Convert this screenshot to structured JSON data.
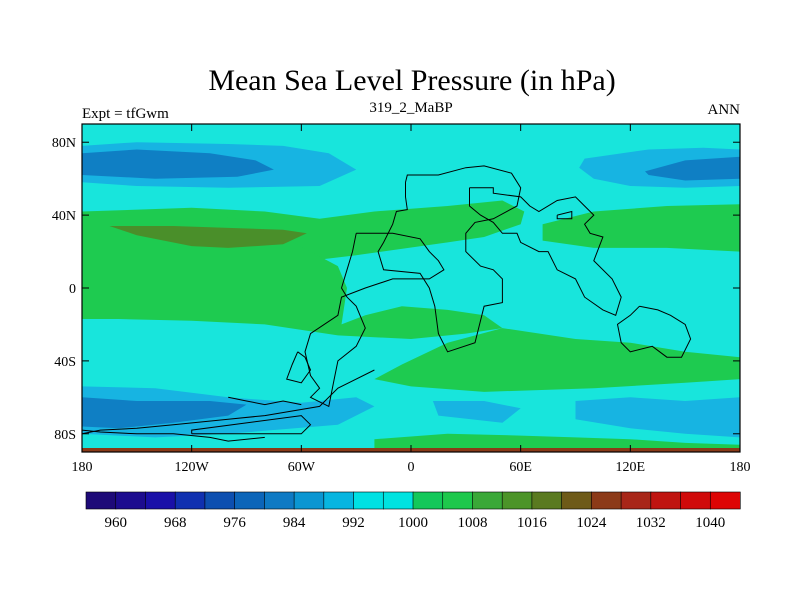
{
  "chart_data": {
    "type": "heatmap",
    "title": "Mean Sea Level Pressure (in hPa)",
    "subtitle_left": "Expt = tfGwm",
    "subtitle_center": "319_2_MaBP",
    "subtitle_right": "ANN",
    "xlim": [
      -180,
      180
    ],
    "ylim": [
      -90,
      90
    ],
    "x_ticks": [
      {
        "value": -180,
        "label": "180"
      },
      {
        "value": -120,
        "label": "120W"
      },
      {
        "value": -60,
        "label": "60W"
      },
      {
        "value": 0,
        "label": "0"
      },
      {
        "value": 60,
        "label": "60E"
      },
      {
        "value": 120,
        "label": "120E"
      },
      {
        "value": 180,
        "label": "180"
      }
    ],
    "y_ticks": [
      {
        "value": 80,
        "label": "80N"
      },
      {
        "value": 40,
        "label": "40N"
      },
      {
        "value": 0,
        "label": "0"
      },
      {
        "value": -40,
        "label": "40S"
      },
      {
        "value": -80,
        "label": "80S"
      }
    ],
    "colorbar": {
      "levels": [
        960,
        964,
        968,
        972,
        976,
        980,
        984,
        988,
        992,
        996,
        1000,
        1004,
        1008,
        1012,
        1016,
        1020,
        1024,
        1028,
        1032,
        1036,
        1040
      ],
      "labels": [
        "960",
        "968",
        "976",
        "984",
        "992",
        "1000",
        "1008",
        "1016",
        "1024",
        "1032",
        "1040"
      ],
      "colors": [
        "#1e0a78",
        "#1d0c8f",
        "#1a10a8",
        "#1030b0",
        "#0d4fb0",
        "#0c65b9",
        "#0e7ac4",
        "#0b96d2",
        "#07b5e0",
        "#00e1e3",
        "#00e3e0",
        "#13c85a",
        "#1ec84c",
        "#3aa838",
        "#4c9428",
        "#5a7a20",
        "#6e5a18",
        "#8c3a18",
        "#a82618",
        "#c01410",
        "#d00a0a",
        "#dd0505"
      ]
    },
    "regions": [
      {
        "level": "1000-1004",
        "color": "#18e5dc",
        "polygon": [
          [
            -180,
            90
          ],
          [
            180,
            90
          ],
          [
            180,
            -90
          ],
          [
            -180,
            -90
          ]
        ]
      },
      {
        "level": "992-996",
        "color": "#17b4e2",
        "polygon": [
          [
            -180,
            78
          ],
          [
            -150,
            80
          ],
          [
            -100,
            79
          ],
          [
            -70,
            78
          ],
          [
            -45,
            74
          ],
          [
            -30,
            65
          ],
          [
            -50,
            56
          ],
          [
            -100,
            55
          ],
          [
            -150,
            56
          ],
          [
            -180,
            58
          ]
        ]
      },
      {
        "level": "984-988",
        "color": "#0f7fc4",
        "polygon": [
          [
            -180,
            74
          ],
          [
            -150,
            76
          ],
          [
            -110,
            74
          ],
          [
            -85,
            70
          ],
          [
            -75,
            65
          ],
          [
            -95,
            61
          ],
          [
            -140,
            60
          ],
          [
            -180,
            62
          ]
        ]
      },
      {
        "level": "992-996",
        "color": "#17b4e2",
        "polygon": [
          [
            95,
            71
          ],
          [
            130,
            76
          ],
          [
            160,
            77
          ],
          [
            180,
            76
          ],
          [
            180,
            56
          ],
          [
            150,
            55
          ],
          [
            120,
            56
          ],
          [
            100,
            60
          ],
          [
            92,
            66
          ]
        ]
      },
      {
        "level": "984-988",
        "color": "#0f7fc4",
        "polygon": [
          [
            128,
            64
          ],
          [
            150,
            70
          ],
          [
            180,
            72
          ],
          [
            180,
            60
          ],
          [
            150,
            59
          ],
          [
            130,
            62
          ]
        ]
      },
      {
        "level": "1004-1008",
        "color": "#1ecb50",
        "polygon": [
          [
            -180,
            42
          ],
          [
            -120,
            44
          ],
          [
            -80,
            42
          ],
          [
            -50,
            38
          ],
          [
            -20,
            42
          ],
          [
            20,
            45
          ],
          [
            50,
            48
          ],
          [
            62,
            42
          ],
          [
            60,
            35
          ],
          [
            40,
            28
          ],
          [
            20,
            25
          ],
          [
            -30,
            18
          ],
          [
            -80,
            12
          ],
          [
            -100,
            3
          ],
          [
            -120,
            -1
          ],
          [
            -150,
            -1
          ],
          [
            -180,
            3
          ]
        ]
      },
      {
        "level": "1008-1012",
        "color": "#1ecb50",
        "polygon": [
          [
            -180,
            42
          ],
          [
            -110,
            40
          ],
          [
            -80,
            36
          ],
          [
            -70,
            28
          ],
          [
            -55,
            20
          ],
          [
            -40,
            12
          ],
          [
            -35,
            0
          ],
          [
            -38,
            -20
          ],
          [
            -25,
            -15
          ],
          [
            -5,
            -10
          ],
          [
            20,
            -12
          ],
          [
            40,
            -15
          ],
          [
            50,
            -22
          ],
          [
            30,
            -25
          ],
          [
            0,
            -28
          ],
          [
            -40,
            -26
          ],
          [
            -80,
            -20
          ],
          [
            -120,
            -18
          ],
          [
            -160,
            -17
          ],
          [
            -180,
            -17
          ]
        ]
      },
      {
        "level": "1004-1008",
        "color": "#1ecb50",
        "polygon": [
          [
            -5,
            -42
          ],
          [
            20,
            -30
          ],
          [
            50,
            -22
          ],
          [
            90,
            -28
          ],
          [
            120,
            -30
          ],
          [
            150,
            -35
          ],
          [
            180,
            -38
          ],
          [
            180,
            -50
          ],
          [
            150,
            -52
          ],
          [
            100,
            -55
          ],
          [
            40,
            -57
          ],
          [
            0,
            -54
          ],
          [
            -20,
            -50
          ]
        ]
      },
      {
        "level": "1004-1008",
        "color": "#1ecb50",
        "polygon": [
          [
            72,
            35
          ],
          [
            100,
            42
          ],
          [
            140,
            45
          ],
          [
            180,
            46
          ],
          [
            180,
            20
          ],
          [
            140,
            22
          ],
          [
            100,
            22
          ],
          [
            72,
            26
          ]
        ]
      },
      {
        "level": "1012-1016",
        "color": "#4a8f2a",
        "polygon": [
          [
            -165,
            34
          ],
          [
            -130,
            34
          ],
          [
            -100,
            33
          ],
          [
            -70,
            32
          ],
          [
            -57,
            30
          ],
          [
            -70,
            24
          ],
          [
            -100,
            22
          ],
          [
            -120,
            23
          ],
          [
            -150,
            29
          ]
        ]
      },
      {
        "level": "992-996",
        "color": "#17b4e2",
        "polygon": [
          [
            -180,
            -54
          ],
          [
            -140,
            -55
          ],
          [
            -100,
            -60
          ],
          [
            -60,
            -63
          ],
          [
            -30,
            -60
          ],
          [
            -20,
            -65
          ],
          [
            -40,
            -75
          ],
          [
            -100,
            -80
          ],
          [
            -140,
            -82
          ],
          [
            -180,
            -80
          ]
        ]
      },
      {
        "level": "984-988",
        "color": "#0f7fc4",
        "polygon": [
          [
            -180,
            -60
          ],
          [
            -150,
            -62
          ],
          [
            -110,
            -62
          ],
          [
            -90,
            -64
          ],
          [
            -100,
            -70
          ],
          [
            -130,
            -74
          ],
          [
            -160,
            -77
          ],
          [
            -180,
            -76
          ]
        ]
      },
      {
        "level": "992-996",
        "color": "#17b4e2",
        "polygon": [
          [
            90,
            -62
          ],
          [
            120,
            -60
          ],
          [
            150,
            -62
          ],
          [
            180,
            -60
          ],
          [
            180,
            -82
          ],
          [
            150,
            -80
          ],
          [
            120,
            -77
          ],
          [
            90,
            -72
          ]
        ]
      },
      {
        "level": "992-996",
        "color": "#17b4e2",
        "polygon": [
          [
            12,
            -62
          ],
          [
            40,
            -62
          ],
          [
            60,
            -66
          ],
          [
            50,
            -74
          ],
          [
            15,
            -70
          ]
        ]
      },
      {
        "level": "1004-1008",
        "color": "#1ecb50",
        "polygon": [
          [
            -20,
            -83
          ],
          [
            20,
            -80
          ],
          [
            60,
            -81
          ],
          [
            90,
            -82
          ],
          [
            120,
            -83
          ],
          [
            150,
            -85
          ],
          [
            180,
            -86
          ],
          [
            180,
            -90
          ],
          [
            -20,
            -90
          ]
        ]
      }
    ],
    "coastlines": [
      [
        [
          -3,
          58
        ],
        [
          -2,
          62
        ],
        [
          3,
          62
        ],
        [
          15,
          62
        ],
        [
          30,
          66
        ],
        [
          40,
          67
        ],
        [
          55,
          63
        ],
        [
          60,
          55
        ],
        [
          58,
          45
        ],
        [
          45,
          38
        ],
        [
          35,
          36
        ],
        [
          30,
          30
        ],
        [
          30,
          20
        ],
        [
          38,
          12
        ],
        [
          45,
          10
        ],
        [
          50,
          5
        ],
        [
          50,
          -8
        ],
        [
          40,
          -10
        ],
        [
          35,
          -30
        ],
        [
          20,
          -35
        ],
        [
          15,
          -25
        ],
        [
          13,
          -10
        ],
        [
          10,
          0
        ],
        [
          5,
          8
        ],
        [
          -15,
          10
        ],
        [
          -18,
          20
        ],
        [
          -15,
          25
        ],
        [
          -10,
          35
        ],
        [
          -8,
          42
        ],
        [
          -2,
          43
        ],
        [
          -3,
          50
        ],
        [
          -3,
          58
        ]
      ],
      [
        [
          -30,
          30
        ],
        [
          -10,
          30
        ],
        [
          5,
          27
        ],
        [
          10,
          20
        ],
        [
          15,
          15
        ],
        [
          18,
          10
        ],
        [
          10,
          5
        ],
        [
          -10,
          5
        ],
        [
          -25,
          0
        ],
        [
          -38,
          -5
        ],
        [
          -40,
          -15
        ],
        [
          -55,
          -25
        ],
        [
          -58,
          -35
        ],
        [
          -55,
          -48
        ],
        [
          -50,
          -55
        ],
        [
          -55,
          -60
        ],
        [
          -45,
          -65
        ],
        [
          -42,
          -50
        ],
        [
          -40,
          -40
        ],
        [
          -30,
          -32
        ],
        [
          -25,
          -22
        ],
        [
          -30,
          -10
        ],
        [
          -35,
          -5
        ],
        [
          -38,
          0
        ],
        [
          -35,
          10
        ],
        [
          -32,
          20
        ],
        [
          -30,
          30
        ]
      ],
      [
        [
          -20,
          -45
        ],
        [
          -40,
          -55
        ],
        [
          -50,
          -65
        ],
        [
          -80,
          -70
        ],
        [
          -100,
          -72
        ],
        [
          -130,
          -75
        ],
        [
          -150,
          -77
        ],
        [
          -170,
          -78
        ],
        [
          -180,
          -80
        ]
      ],
      [
        [
          -120,
          -80
        ],
        [
          -60,
          -80
        ],
        [
          -55,
          -75
        ],
        [
          -60,
          -70
        ],
        [
          -120,
          -78
        ],
        [
          -120,
          -80
        ]
      ],
      [
        [
          32,
          55
        ],
        [
          45,
          55
        ],
        [
          45,
          52
        ],
        [
          60,
          50
        ],
        [
          65,
          45
        ],
        [
          70,
          42
        ],
        [
          80,
          48
        ],
        [
          90,
          50
        ],
        [
          95,
          45
        ],
        [
          100,
          40
        ],
        [
          95,
          35
        ],
        [
          98,
          30
        ],
        [
          105,
          28
        ],
        [
          100,
          15
        ],
        [
          110,
          5
        ],
        [
          115,
          -5
        ],
        [
          112,
          -15
        ],
        [
          105,
          -12
        ],
        [
          95,
          -5
        ],
        [
          90,
          5
        ],
        [
          80,
          10
        ],
        [
          75,
          20
        ],
        [
          70,
          20
        ],
        [
          60,
          25
        ],
        [
          58,
          30
        ],
        [
          50,
          30
        ],
        [
          45,
          36
        ],
        [
          38,
          40
        ],
        [
          32,
          45
        ],
        [
          32,
          55
        ]
      ],
      [
        [
          80,
          40
        ],
        [
          88,
          42
        ],
        [
          88,
          38
        ],
        [
          80,
          38
        ],
        [
          80,
          40
        ]
      ],
      [
        [
          125,
          -10
        ],
        [
          135,
          -12
        ],
        [
          142,
          -15
        ],
        [
          150,
          -20
        ],
        [
          153,
          -28
        ],
        [
          148,
          -38
        ],
        [
          140,
          -38
        ],
        [
          132,
          -32
        ],
        [
          120,
          -35
        ],
        [
          115,
          -30
        ],
        [
          113,
          -20
        ],
        [
          120,
          -15
        ],
        [
          125,
          -10
        ]
      ],
      [
        [
          -62,
          -35
        ],
        [
          -65,
          -42
        ],
        [
          -68,
          -50
        ],
        [
          -60,
          -52
        ],
        [
          -55,
          -45
        ],
        [
          -58,
          -38
        ],
        [
          -62,
          -35
        ]
      ],
      [
        [
          -100,
          -60
        ],
        [
          -90,
          -62
        ],
        [
          -80,
          -64
        ],
        [
          -70,
          -62
        ],
        [
          -60,
          -64
        ]
      ],
      [
        [
          -180,
          -78
        ],
        [
          -170,
          -79
        ],
        [
          -150,
          -80
        ],
        [
          -130,
          -80
        ],
        [
          -110,
          -82
        ],
        [
          -100,
          -84
        ],
        [
          -80,
          -82
        ]
      ]
    ]
  }
}
